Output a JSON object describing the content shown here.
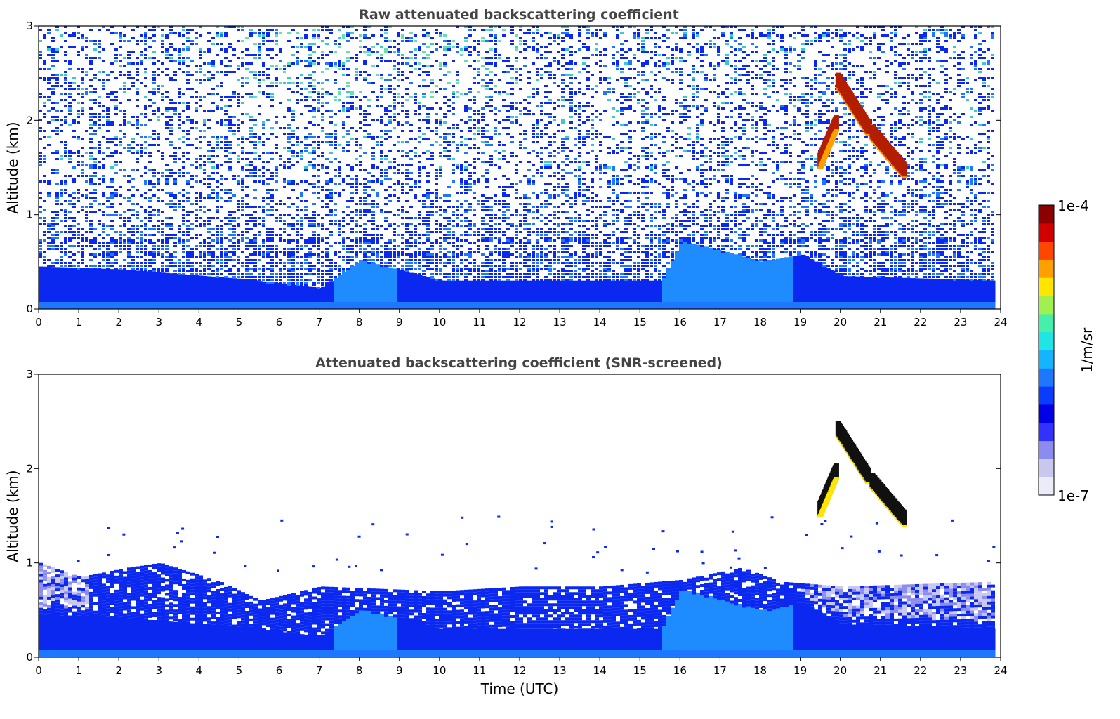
{
  "chart_data": [
    {
      "type": "heatmap",
      "title": "Raw attenuated backscattering coefficient",
      "xlabel": "",
      "ylabel": "Altitude (km)",
      "xlim": [
        0,
        24
      ],
      "ylim": [
        0,
        3
      ],
      "xticks": [
        "0",
        "1",
        "2",
        "3",
        "4",
        "5",
        "6",
        "7",
        "8",
        "9",
        "10",
        "11",
        "12",
        "13",
        "14",
        "15",
        "16",
        "17",
        "18",
        "19",
        "20",
        "21",
        "22",
        "23",
        "24"
      ],
      "yticks": [
        "0",
        "1",
        "2",
        "3"
      ],
      "grid": false,
      "data_coverage_hours": [
        0,
        23.8
      ],
      "description_values": {
        "boundary_layer_top_km": [
          {
            "t": 0,
            "z": 0.45
          },
          {
            "t": 2,
            "z": 0.42
          },
          {
            "t": 5,
            "z": 0.32
          },
          {
            "t": 7,
            "z": 0.22
          },
          {
            "t": 8,
            "z": 0.52
          },
          {
            "t": 10,
            "z": 0.3
          },
          {
            "t": 13,
            "z": 0.3
          },
          {
            "t": 15.5,
            "z": 0.3
          },
          {
            "t": 16,
            "z": 0.72
          },
          {
            "t": 17,
            "z": 0.62
          },
          {
            "t": 18,
            "z": 0.5
          },
          {
            "t": 19,
            "z": 0.58
          },
          {
            "t": 20,
            "z": 0.35
          },
          {
            "t": 23.8,
            "z": 0.3
          }
        ],
        "cloud_segments": [
          {
            "t": [
              19.95,
              20.7
            ],
            "z": [
              2.4,
              1.9
            ]
          },
          {
            "t": [
              20.8,
              21.6
            ],
            "z": [
              1.85,
              1.45
            ]
          },
          {
            "t": [
              19.5,
              19.9
            ],
            "z": [
              1.55,
              1.95
            ]
          }
        ]
      }
    },
    {
      "type": "heatmap",
      "title": "Attenuated backscattering coefficient (SNR-screened)",
      "xlabel": "Time (UTC)",
      "ylabel": "Altitude (km)",
      "xlim": [
        0,
        24
      ],
      "ylim": [
        0,
        3
      ],
      "xticks": [
        "0",
        "1",
        "2",
        "3",
        "4",
        "5",
        "6",
        "7",
        "8",
        "9",
        "10",
        "11",
        "12",
        "13",
        "14",
        "15",
        "16",
        "17",
        "18",
        "19",
        "20",
        "21",
        "22",
        "23",
        "24"
      ],
      "yticks": [
        "0",
        "1",
        "2",
        "3"
      ],
      "grid": false,
      "data_coverage_hours": [
        0,
        23.8
      ],
      "description_values": {
        "screened_top_km": [
          {
            "t": 0,
            "z": 1.0
          },
          {
            "t": 1,
            "z": 0.85
          },
          {
            "t": 2.2,
            "z": 0.95
          },
          {
            "t": 3,
            "z": 1.0
          },
          {
            "t": 4.5,
            "z": 0.8
          },
          {
            "t": 5.5,
            "z": 0.6
          },
          {
            "t": 7,
            "z": 0.75
          },
          {
            "t": 10,
            "z": 0.7
          },
          {
            "t": 12,
            "z": 0.75
          },
          {
            "t": 14,
            "z": 0.75
          },
          {
            "t": 16,
            "z": 0.82
          },
          {
            "t": 17.5,
            "z": 0.95
          },
          {
            "t": 18.5,
            "z": 0.8
          },
          {
            "t": 20,
            "z": 0.75
          },
          {
            "t": 23.8,
            "z": 0.8
          }
        ]
      }
    }
  ],
  "colorbar": {
    "label": "1/m/sr",
    "max_label": "1e-4",
    "min_label": "1e-7",
    "scale": "log",
    "range": [
      1e-07,
      0.0001
    ],
    "colormap": [
      "#ececf8",
      "#c8c8ee",
      "#8c8cf0",
      "#3232ff",
      "#0000e6",
      "#0a3cff",
      "#1e78ff",
      "#14b4ff",
      "#1ee6e6",
      "#46f0aa",
      "#a0f050",
      "#ffe600",
      "#ffa000",
      "#ff4600",
      "#d20000",
      "#8c0000"
    ]
  }
}
